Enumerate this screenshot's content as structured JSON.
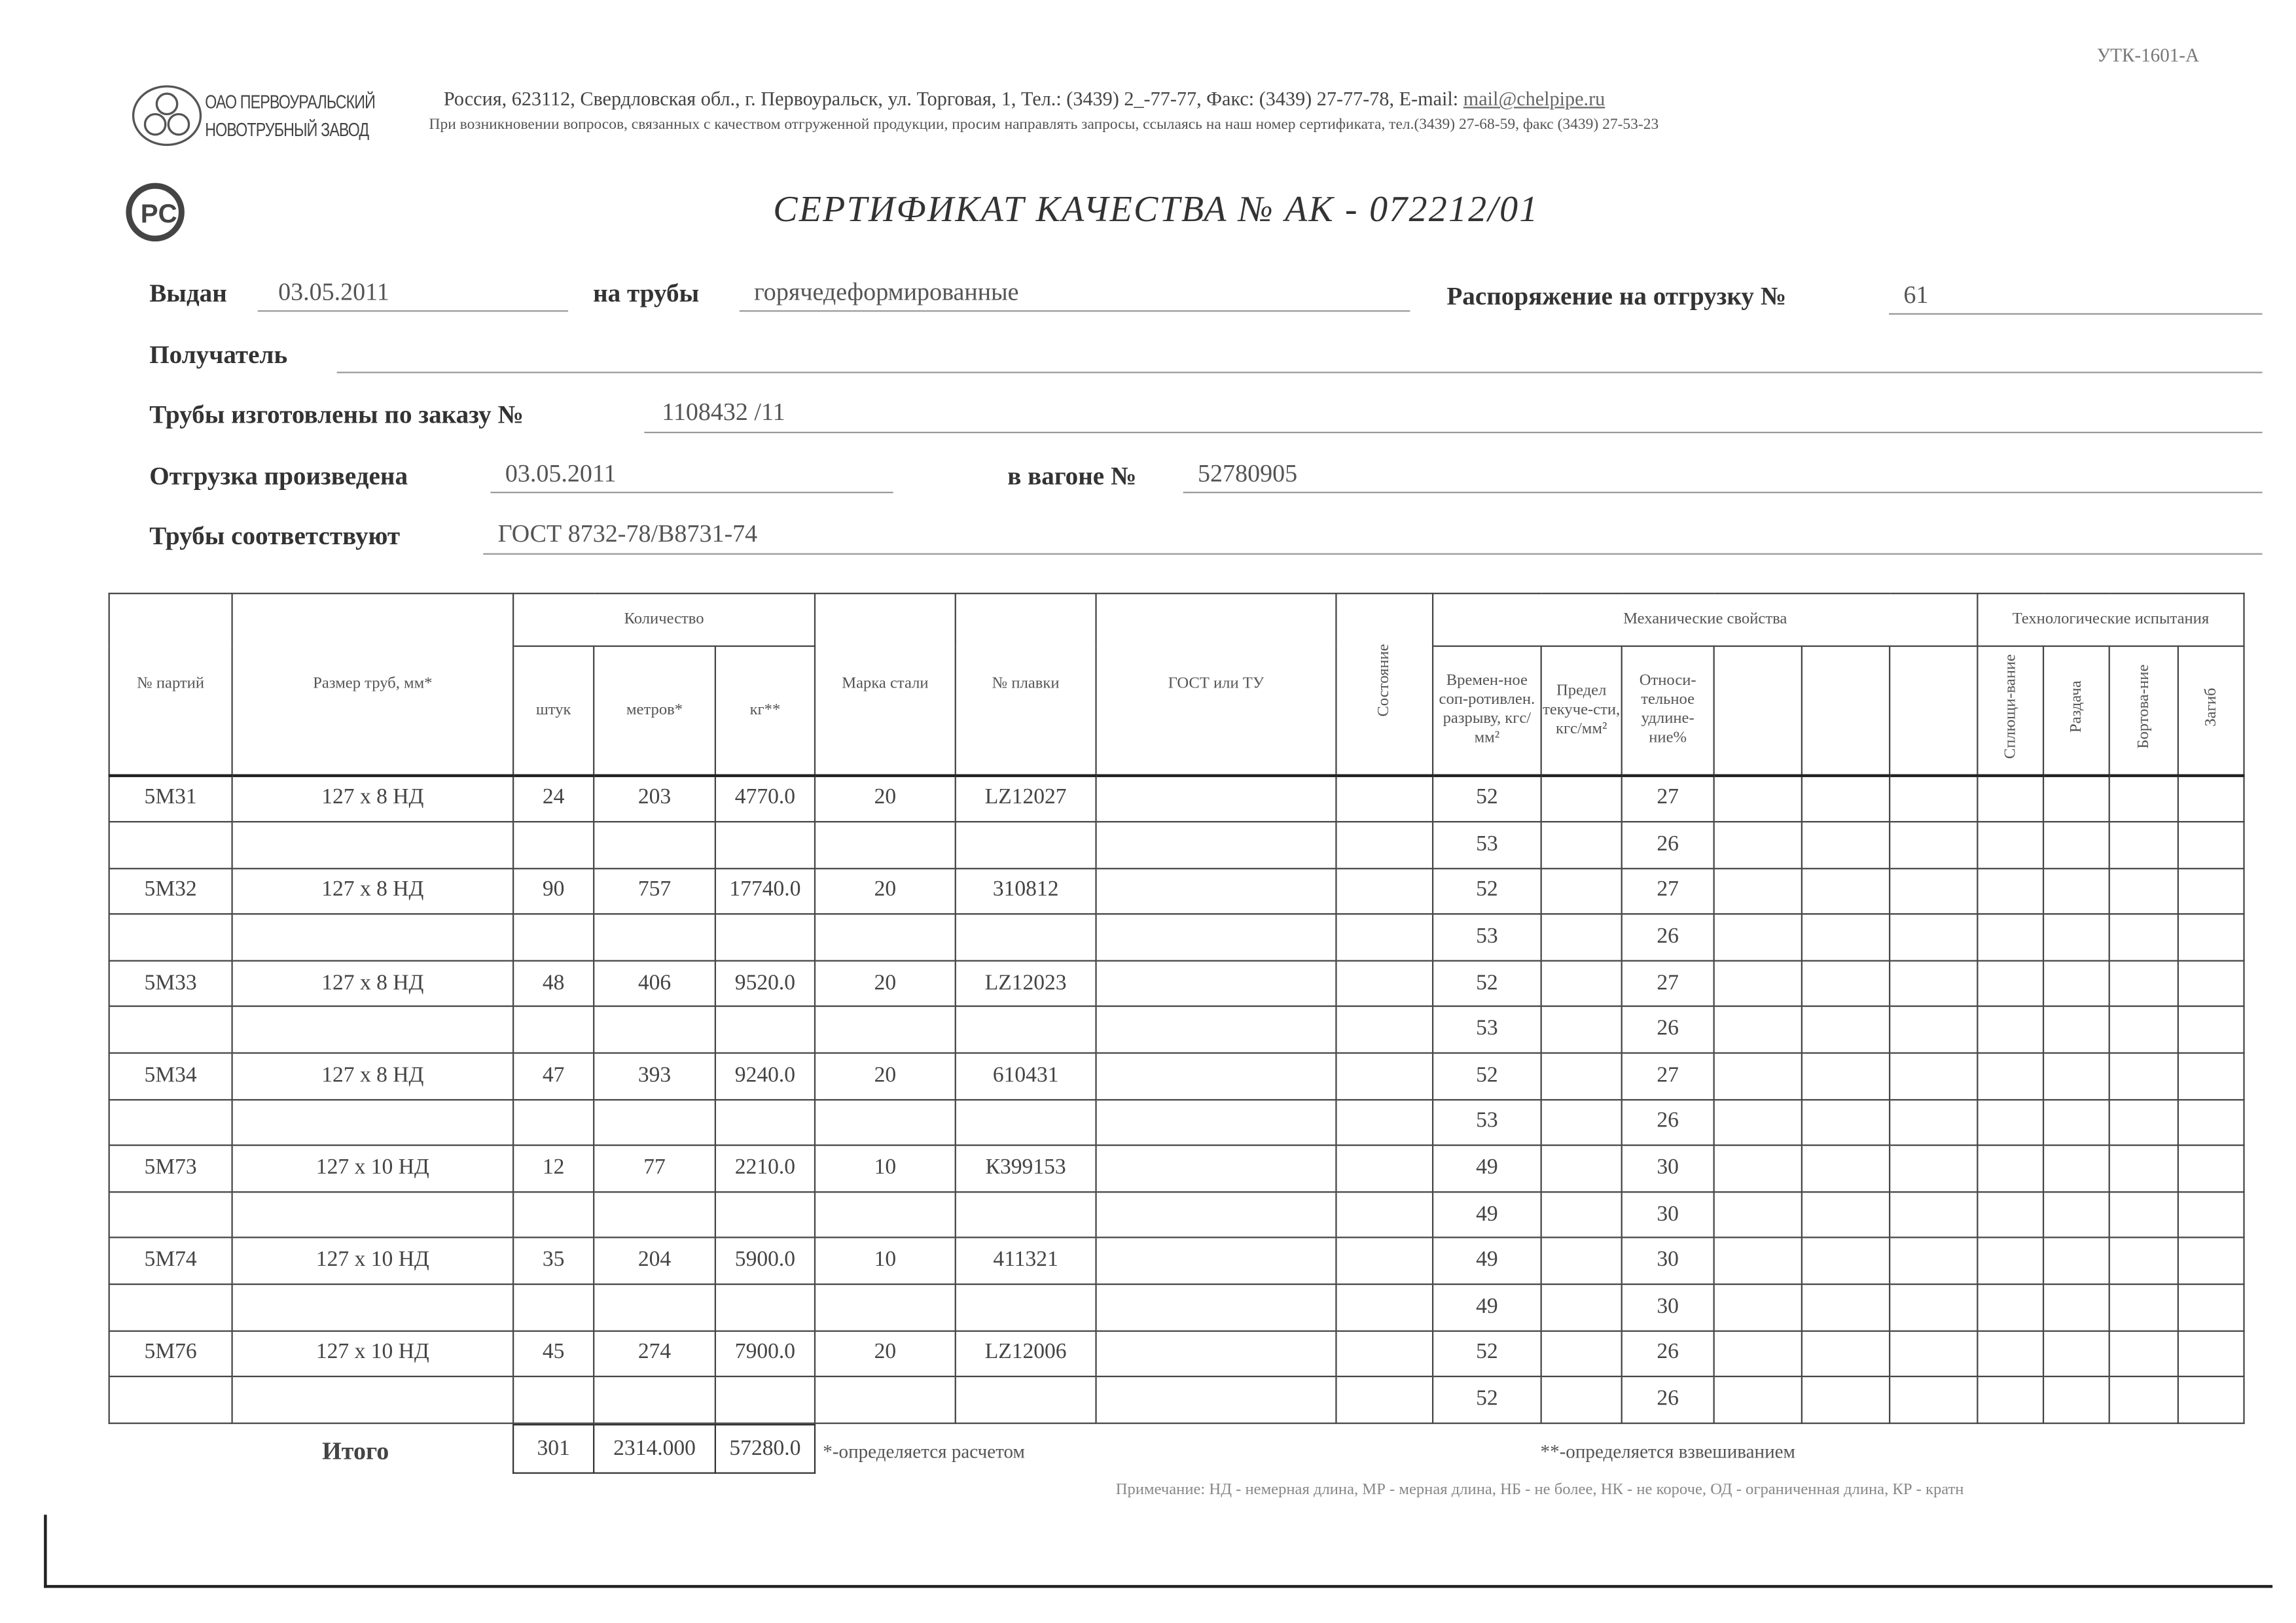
{
  "form_code": "УТК-1601-А",
  "company": {
    "line1": "ОАО ПЕРВОУРАЛЬСКИЙ",
    "line2": "НОВОТРУБНЫЙ ЗАВОД"
  },
  "address": "Россия, 623112, Свердловская обл., г. Первоуральск, ул. Торговая, 1, Тел.: (3439) 2_-77-77, Факс: (3439) 27-77-78,  E-mail: ",
  "email": "mail@chelpipe.ru",
  "contact_note": "При возникновении вопросов, связанных с качеством отгруженной продукции, просим направлять запросы, ссылаясь на наш номер сертификата, тел.(3439) 27-68-59, факс (3439) 27-53-23",
  "title": "СЕРТИФИКАТ КАЧЕСТВА   №  АК -  072212/01",
  "fields": {
    "issued_label": "Выдан",
    "issued": "03.05.2011",
    "pipes_label": "на трубы",
    "pipes": "горячедеформированные",
    "order_label": "Распоряжение на отгрузку №",
    "order": "61",
    "recipient_label": "Получатель",
    "recipient": "",
    "made_label": "Трубы изготовлены по заказу №",
    "made": "1108432   /11",
    "shipped_label": "Отгрузка произведена",
    "shipped": "03.05.2011",
    "wagon_label": "в вагоне №",
    "wagon": "52780905",
    "conform_label": "Трубы соответствуют",
    "conform": "ГОСТ 8732-78/В8731-74"
  },
  "table": {
    "headers": {
      "batch": "№ партий",
      "size": "Размер труб, мм*",
      "quantity": "Количество",
      "pcs": "штук",
      "meters": "метров*",
      "kg": "кг**",
      "steel": "Марка стали",
      "heat": "№ плавки",
      "gost": "ГОСТ или ТУ",
      "state": "Состояние",
      "mech": "Механические свойства",
      "tensile": "Времен-ное соп-ротивлен. разрыву, кгс/мм²",
      "yield": "Предел текуче-сти, кгс/мм²",
      "elong": "Относи-тельное удлине-ние%",
      "tech": "Технологические испытания",
      "flat": "Сплющи-вание",
      "expand": "Раздача",
      "flange": "Бортова-ние",
      "bend": "Загиб"
    },
    "rows": [
      {
        "batch": "5М31",
        "size": "127 x 8 НД",
        "pcs": "24",
        "meters": "203",
        "kg": "4770.0",
        "steel": "20",
        "heat": "LZ12027",
        "t": [
          "52",
          "53"
        ],
        "e": [
          "27",
          "26"
        ]
      },
      {
        "batch": "5М32",
        "size": "127 x 8 НД",
        "pcs": "90",
        "meters": "757",
        "kg": "17740.0",
        "steel": "20",
        "heat": "310812",
        "t": [
          "52",
          "53"
        ],
        "e": [
          "27",
          "26"
        ]
      },
      {
        "batch": "5М33",
        "size": "127 x 8 НД",
        "pcs": "48",
        "meters": "406",
        "kg": "9520.0",
        "steel": "20",
        "heat": "LZ12023",
        "t": [
          "52",
          "53"
        ],
        "e": [
          "27",
          "26"
        ]
      },
      {
        "batch": "5М34",
        "size": "127 x 8 НД",
        "pcs": "47",
        "meters": "393",
        "kg": "9240.0",
        "steel": "20",
        "heat": "610431",
        "t": [
          "52",
          "53"
        ],
        "e": [
          "27",
          "26"
        ]
      },
      {
        "batch": "5М73",
        "size": "127 x 10 НД",
        "pcs": "12",
        "meters": "77",
        "kg": "2210.0",
        "steel": "10",
        "heat": "К399153",
        "t": [
          "49",
          "49"
        ],
        "e": [
          "30",
          "30"
        ]
      },
      {
        "batch": "5М74",
        "size": "127 x 10 НД",
        "pcs": "35",
        "meters": "204",
        "kg": "5900.0",
        "steel": "10",
        "heat": "411321",
        "t": [
          "49",
          "49"
        ],
        "e": [
          "30",
          "30"
        ]
      },
      {
        "batch": "5М76",
        "size": "127 x 10 НД",
        "pcs": "45",
        "meters": "274",
        "kg": "7900.0",
        "steel": "20",
        "heat": "LZ12006",
        "t": [
          "52",
          "52"
        ],
        "e": [
          "26",
          "26"
        ]
      }
    ]
  },
  "totals": {
    "label": "Итого",
    "pcs": "301",
    "meters": "2314.000",
    "kg": "57280.0"
  },
  "footnotes": {
    "calc": "*-определяется расчетом",
    "weigh": "**-определяется взвешиванием",
    "note": "Примечание: НД - немерная длина, МР - мерная длина, НБ - не более, НК - не короче, ОД - ограниченная длина, КР - кратн"
  }
}
